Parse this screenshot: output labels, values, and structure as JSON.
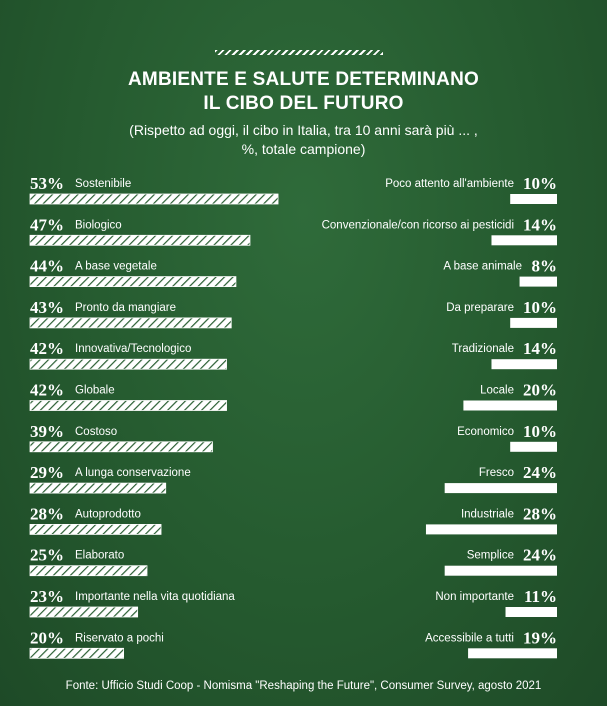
{
  "header": {
    "title_line1": "AMBIENTE E SALUTE DETERMINANO",
    "title_line2": "IL CIBO DEL FUTURO",
    "subtitle_line1": "(Rispetto ad oggi, il cibo in Italia, tra 10 anni sarà più ... ,",
    "subtitle_line2": "%, totale campione)"
  },
  "source": "Fonte: Ufficio Studi Coop - Nomisma \"Reshaping the Future\", Consumer Survey, agosto 2021",
  "colors": {
    "background": "#255a2f",
    "bar": "#ffffff",
    "text": "#ffffff"
  },
  "chart_data": {
    "type": "bar",
    "unit": "%",
    "left_series": {
      "pattern": "hatched",
      "categories": [
        "Sostenibile",
        "Biologico",
        "A base vegetale",
        "Pronto da mangiare",
        "Innovativa/Tecnologico",
        "Globale",
        "Costoso",
        "A lunga conservazione",
        "Autoprodotto",
        "Elaborato",
        "Importante nella vita quotidiana",
        "Riservato a pochi"
      ],
      "values": [
        53,
        47,
        44,
        43,
        42,
        42,
        39,
        29,
        28,
        25,
        23,
        20
      ],
      "labels": [
        "53%",
        "47%",
        "44%",
        "43%",
        "42%",
        "42%",
        "39%",
        "29%",
        "28%",
        "25%",
        "23%",
        "20%"
      ]
    },
    "right_series": {
      "pattern": "solid",
      "categories": [
        "Poco attento all'ambiente",
        "Convenzionale/con ricorso ai pesticidi",
        "A base animale",
        "Da preparare",
        "Tradizionale",
        "Locale",
        "Economico",
        "Fresco",
        "Industriale",
        "Semplice",
        "Non importante",
        "Accessibile a tutti"
      ],
      "values": [
        10,
        14,
        8,
        10,
        14,
        20,
        10,
        24,
        28,
        24,
        11,
        19
      ],
      "labels": [
        "10%",
        "14%",
        "8%",
        "10%",
        "14%",
        "20%",
        "10%",
        "24%",
        "28%",
        "24%",
        "11%",
        "19%"
      ]
    }
  }
}
